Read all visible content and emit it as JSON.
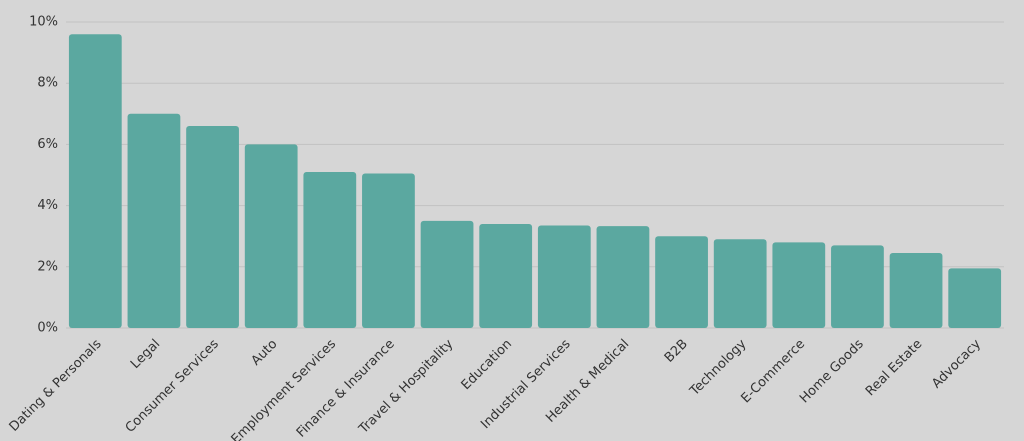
{
  "chart_data": {
    "type": "bar",
    "categories": [
      "Dating & Personals",
      "Legal",
      "Consumer Services",
      "Auto",
      "Employment Services",
      "Finance & Insurance",
      "Travel & Hospitality",
      "Education",
      "Industrial Services",
      "Health & Medical",
      "B2B",
      "Technology",
      "E-Commerce",
      "Home Goods",
      "Real Estate",
      "Advocacy"
    ],
    "values": [
      9.6,
      7.0,
      6.6,
      6.0,
      5.1,
      5.05,
      3.5,
      3.4,
      3.35,
      3.33,
      3.0,
      2.9,
      2.8,
      2.7,
      2.45,
      1.95
    ],
    "color": "#5ba8a0",
    "ylim": [
      0,
      10
    ],
    "yticks": [
      {
        "value": 0,
        "label": "0%"
      },
      {
        "value": 2,
        "label": "2%"
      },
      {
        "value": 4,
        "label": "4%"
      },
      {
        "value": 6,
        "label": "6%"
      },
      {
        "value": 8,
        "label": "8%"
      },
      {
        "value": 10,
        "label": "10%"
      }
    ],
    "grid": true
  }
}
